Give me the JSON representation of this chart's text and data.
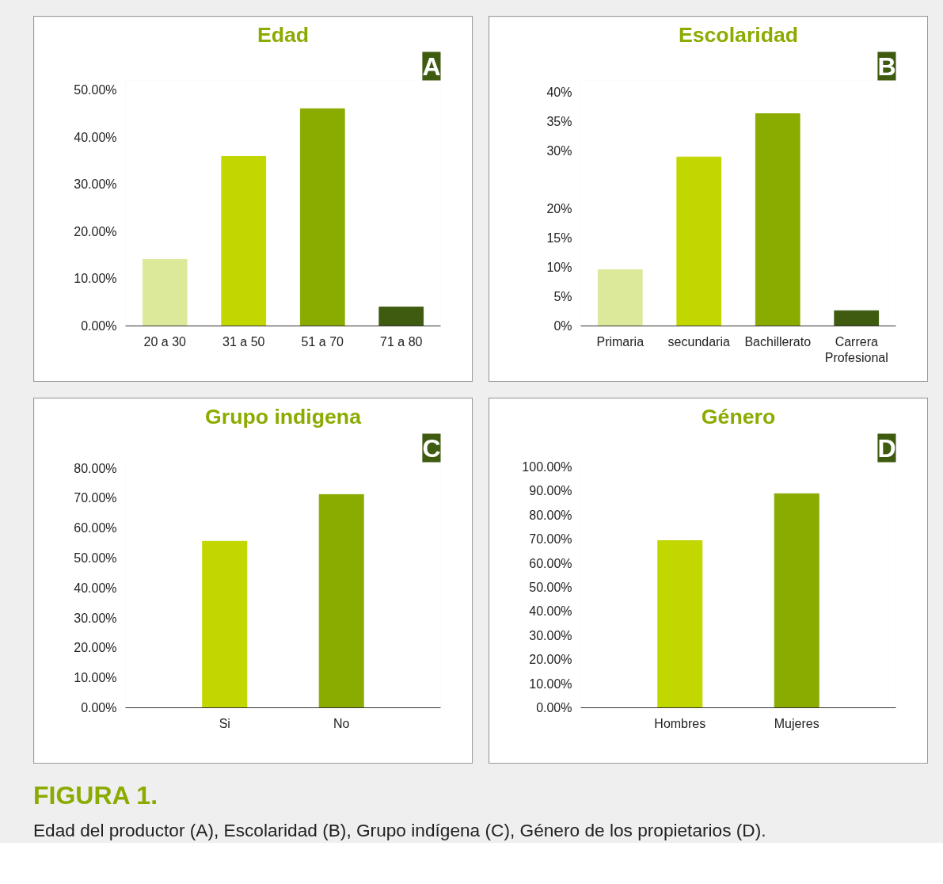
{
  "chart_data": [
    {
      "type": "bar",
      "title": "Edad",
      "categories": [
        "20 a 30",
        "31 a 50",
        "51 a 70",
        "71 a 80"
      ],
      "values": [
        14.1,
        35.9,
        46.0,
        4.0
      ],
      "colors": [
        "#dde99a",
        "#c2d600",
        "#8aab00",
        "#3e5b10"
      ],
      "ylim": [
        0,
        52
      ],
      "yticks": [
        {
          "value": 0,
          "label": "0.00%"
        },
        {
          "value": 10,
          "label": "10.00%"
        },
        {
          "value": 20,
          "label": "20.00%"
        },
        {
          "value": 30,
          "label": "30.00%"
        },
        {
          "value": 40,
          "label": "40.00%"
        },
        {
          "value": 50,
          "label": "50.00%"
        }
      ],
      "grid": false,
      "annotations": [
        "A"
      ]
    },
    {
      "type": "bar",
      "title": "Escolaridad",
      "categories": [
        "Primaria",
        "secundaria",
        "Bachillerato",
        "Carrera Profesional"
      ],
      "values": [
        9.6,
        28.9,
        36.3,
        2.6
      ],
      "colors": [
        "#dde99a",
        "#c2d600",
        "#8aab00",
        "#3e5b10"
      ],
      "ylim": [
        0,
        42
      ],
      "yticks": [
        {
          "value": 0,
          "label": "0%"
        },
        {
          "value": 5,
          "label": "5%"
        },
        {
          "value": 10,
          "label": "10%"
        },
        {
          "value": 15,
          "label": "15%"
        },
        {
          "value": 20,
          "label": "20%"
        },
        {
          "value": 30,
          "label": "30%"
        },
        {
          "value": 35,
          "label": "35%"
        },
        {
          "value": 40,
          "label": "40%"
        }
      ],
      "grid": false,
      "annotations": [
        "B"
      ]
    },
    {
      "type": "bar",
      "title": "Grupo indigena",
      "categories": [
        "Si",
        "No"
      ],
      "values": [
        55.6,
        71.2
      ],
      "colors": [
        "#c2d600",
        "#8aab00"
      ],
      "ylim": [
        0,
        82
      ],
      "yticks": [
        {
          "value": 0,
          "label": "0.00%"
        },
        {
          "value": 10,
          "label": "10.00%"
        },
        {
          "value": 20,
          "label": "20.00%"
        },
        {
          "value": 30,
          "label": "30.00%"
        },
        {
          "value": 40,
          "label": "40.00%"
        },
        {
          "value": 50,
          "label": "50.00%"
        },
        {
          "value": 60,
          "label": "60.00%"
        },
        {
          "value": 70,
          "label": "70.00%"
        },
        {
          "value": 80,
          "label": "80.00%"
        }
      ],
      "grid": false,
      "annotations": [
        "C"
      ]
    },
    {
      "type": "bar",
      "title": "Género",
      "categories": [
        "Hombres",
        "Mujeres"
      ],
      "values": [
        69.4,
        88.9
      ],
      "colors": [
        "#c2d600",
        "#8aab00"
      ],
      "ylim": [
        0,
        102
      ],
      "yticks": [
        {
          "value": 0,
          "label": "0.00%"
        },
        {
          "value": 10,
          "label": "10.00%"
        },
        {
          "value": 20,
          "label": "20.00%"
        },
        {
          "value": 30,
          "label": "30.00%"
        },
        {
          "value": 40,
          "label": "40.00%"
        },
        {
          "value": 50,
          "label": "50.00%"
        },
        {
          "value": 60,
          "label": "60.00%"
        },
        {
          "value": 70,
          "label": "70.00%"
        },
        {
          "value": 80,
          "label": "80.00%"
        },
        {
          "value": 90,
          "label": "90.00%"
        },
        {
          "value": 100,
          "label": "100.00%"
        }
      ],
      "grid": false,
      "annotations": [
        "D",
        "FIGURA 1.",
        "Edad del productor (A), Escolaridad (B), Grupo indígena (C), Género de los propietarios (D)."
      ]
    }
  ]
}
